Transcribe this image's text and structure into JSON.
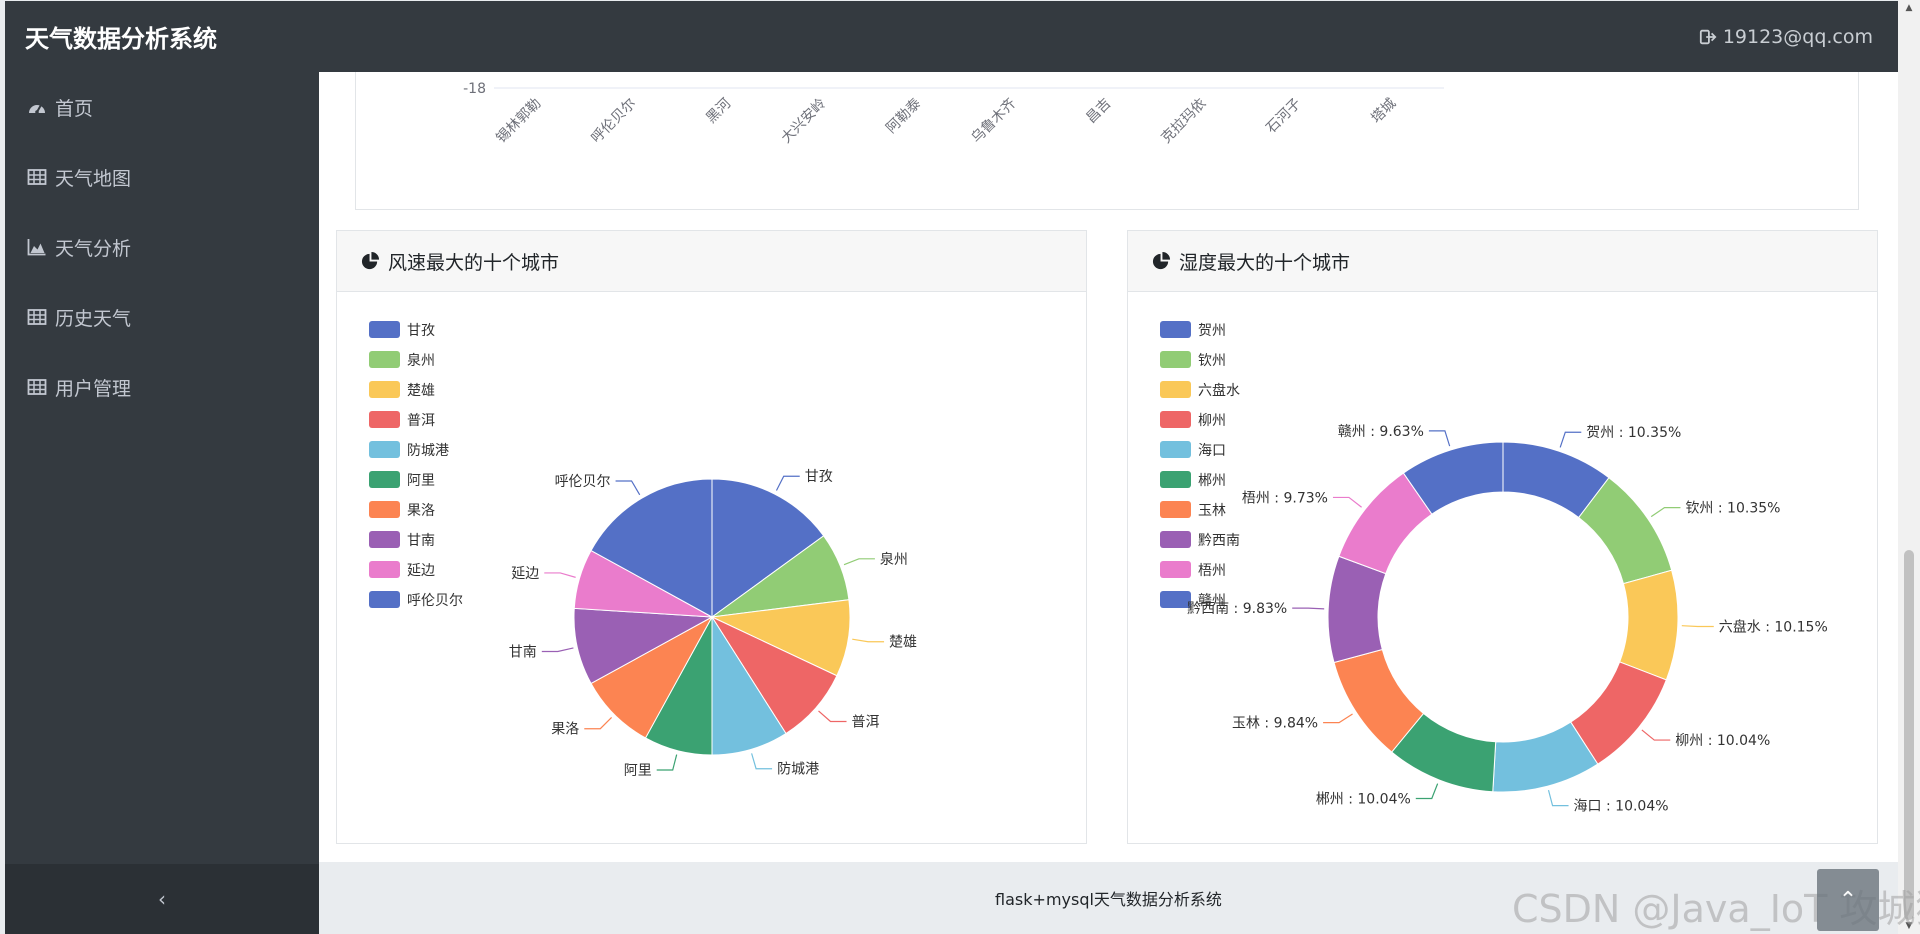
{
  "app": {
    "title": "天气数据分析系统",
    "user_email": "19123@qq.com"
  },
  "sidebar": {
    "items": [
      {
        "label": "首页",
        "icon": "dashboard-icon"
      },
      {
        "label": "天气地图",
        "icon": "table-icon"
      },
      {
        "label": "天气分析",
        "icon": "area-chart-icon"
      },
      {
        "label": "历史天气",
        "icon": "table-icon"
      },
      {
        "label": "用户管理",
        "icon": "table-icon"
      }
    ],
    "collapse_label": "‹"
  },
  "top_chart": {
    "y_tick_visible": "-18",
    "categories": [
      "锡林郭勒",
      "呼伦贝尔",
      "黑河",
      "大兴安岭",
      "阿勒泰",
      "乌鲁木齐",
      "昌吉",
      "克拉玛依",
      "石河子",
      "塔城"
    ]
  },
  "cards": {
    "wind": {
      "title": "风速最大的十个城市"
    },
    "humidity": {
      "title": "湿度最大的十个城市"
    }
  },
  "footer": {
    "text": "flask+mysql天气数据分析系统"
  },
  "watermark": "CSDN @Java_IoT 攻城狮",
  "top_button_label": "⌃",
  "chart_data": [
    {
      "type": "pie",
      "title": "风速最大的十个城市",
      "legend": "left",
      "categories": [
        "甘孜",
        "泉州",
        "楚雄",
        "普洱",
        "防城港",
        "阿里",
        "果洛",
        "甘南",
        "延边",
        "呼伦贝尔"
      ],
      "values": [
        15,
        8,
        9,
        9,
        9,
        8,
        9,
        9,
        7,
        17
      ],
      "colors": [
        "#5470c6",
        "#91cc75",
        "#fac858",
        "#ee6666",
        "#73c0de",
        "#3ba272",
        "#fc8452",
        "#9a60b4",
        "#ea7ccc",
        "#5470c6"
      ]
    },
    {
      "type": "pie",
      "subtype": "donut",
      "title": "湿度最大的十个城市",
      "legend": "left",
      "categories": [
        "贺州",
        "钦州",
        "六盘水",
        "柳州",
        "海口",
        "郴州",
        "玉林",
        "黔西南",
        "梧州",
        "赣州"
      ],
      "values": [
        10.35,
        10.35,
        10.15,
        10.04,
        10.04,
        10.04,
        9.84,
        9.83,
        9.73,
        9.63
      ],
      "labels": [
        "贺州 : 10.35%",
        "钦州 : 10.35%",
        "六盘水 : 10.15%",
        "柳州 : 10.04%",
        "海口 : 10.04%",
        "郴州 : 10.04%",
        "玉林 : 9.84%",
        "黔西南 : 9.83%",
        "梧州 : 9.73%",
        "赣州 : 9.63%"
      ],
      "colors": [
        "#5470c6",
        "#91cc75",
        "#fac858",
        "#ee6666",
        "#73c0de",
        "#3ba272",
        "#fc8452",
        "#9a60b4",
        "#ea7ccc",
        "#5470c6"
      ]
    }
  ]
}
